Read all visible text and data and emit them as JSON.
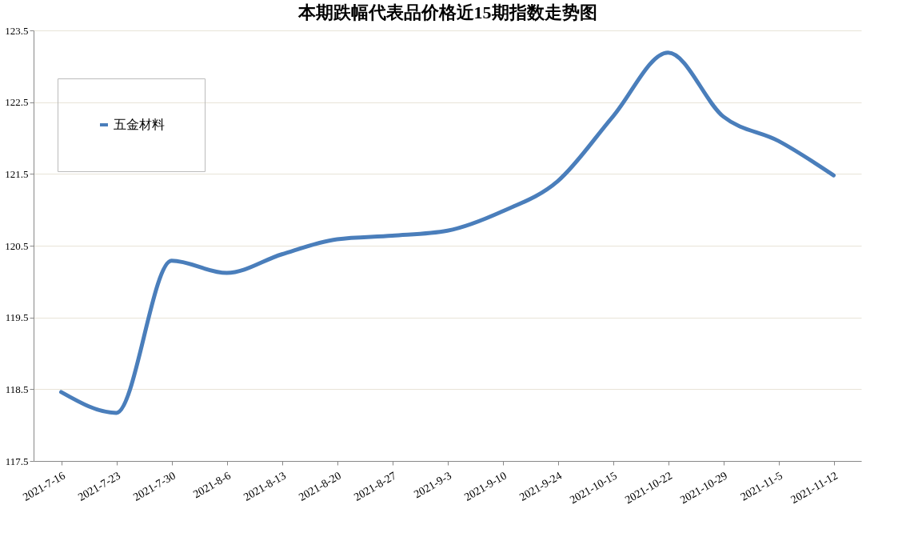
{
  "chart_data": {
    "type": "line",
    "title": "本期跌幅代表品价格近15期指数走势图",
    "categories": [
      "2021-7-16",
      "2021-7-23",
      "2021-7-30",
      "2021-8-6",
      "2021-8-13",
      "2021-8-20",
      "2021-8-27",
      "2021-9-3",
      "2021-9-10",
      "2021-9-24",
      "2021-10-15",
      "2021-10-22",
      "2021-10-29",
      "2021-11-5",
      "2021-11-12"
    ],
    "series": [
      {
        "name": "五金材料",
        "color": "#4a7ebb",
        "values": [
          118.46,
          118.17,
          120.29,
          120.12,
          120.38,
          120.59,
          120.64,
          120.71,
          120.98,
          121.4,
          122.3,
          123.19,
          122.3,
          121.96,
          121.48
        ]
      }
    ],
    "ylim": [
      117.5,
      123.5
    ],
    "yticks": [
      117.5,
      118.5,
      119.5,
      120.5,
      121.5,
      122.5,
      123.5
    ],
    "grid": "y",
    "legend": "top left",
    "marker": "none",
    "line_style": "solid"
  }
}
